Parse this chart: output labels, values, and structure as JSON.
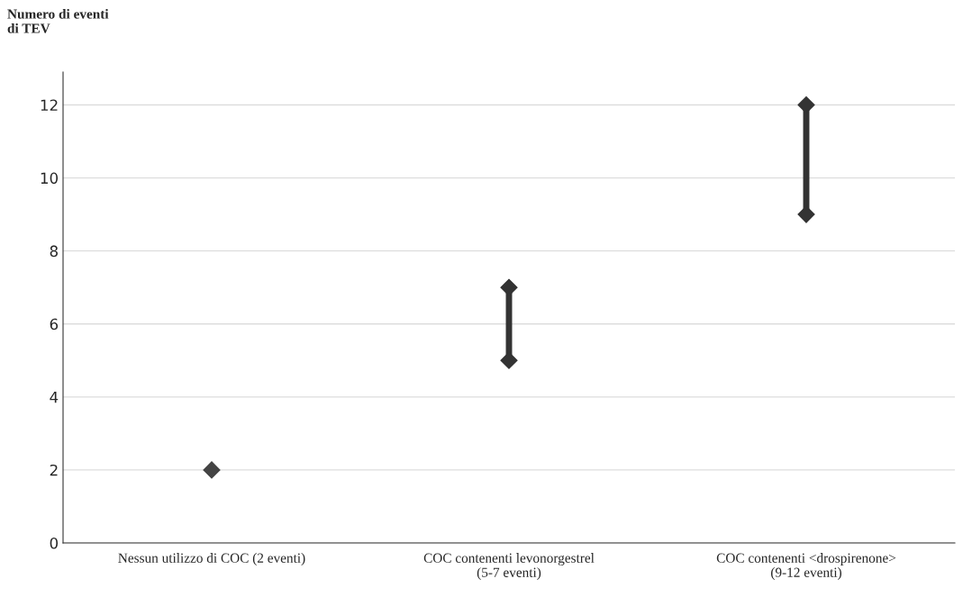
{
  "chart_data": {
    "type": "line",
    "title": "Numero di eventi\ndi TEV",
    "categories": [
      "Nessun utilizzo di COC (2 eventi)",
      "COC contenenti levonorgestrel\n(5-7 eventi)",
      "COC contenenti <drospirenone>\n(9-12 eventi)"
    ],
    "series": [
      {
        "color": "#444444",
        "x": [
          "Nessun utilizzo di COC (2 eventi)"
        ],
        "values": [
          2
        ]
      },
      {
        "color": "#333333",
        "x": [
          "COC contenenti levonorgestrel\n(5-7 eventi)",
          "COC contenenti levonorgestrel\n(5-7 eventi)"
        ],
        "values": [
          5,
          7
        ]
      },
      {
        "color": "#333333",
        "x": [
          "COC contenenti <drospirenone>\n(9-12 eventi)",
          "COC contenenti <drospirenone>\n(9-12 eventi)"
        ],
        "values": [
          9,
          12
        ]
      }
    ],
    "marker": "diamond",
    "line_style": "solid",
    "ylim": [
      0,
      12.9
    ],
    "yticks": [
      0,
      2,
      4,
      6,
      8,
      10,
      12
    ],
    "grid": "y",
    "legend": false
  }
}
